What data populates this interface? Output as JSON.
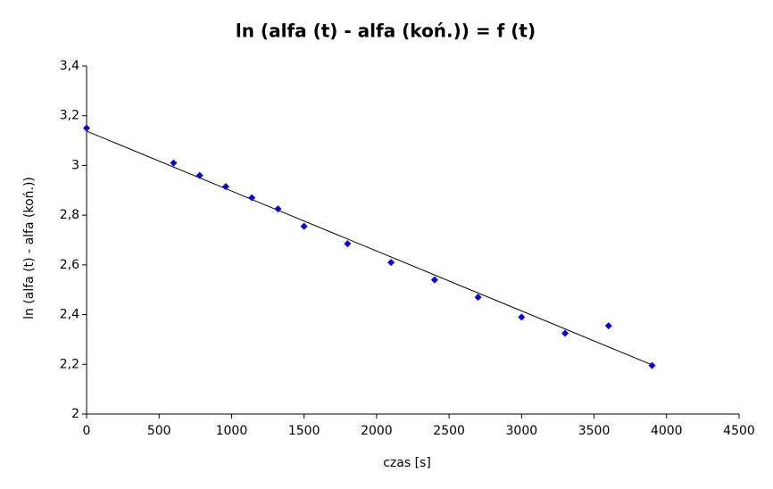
{
  "chart_data": {
    "type": "scatter",
    "title": "ln (alfa (t) - alfa (koń.)) = f (t)",
    "x_label": "czas [s]",
    "y_label": "ln (alfa (t) - alfa (koń.))",
    "series": [
      {
        "color": "#0000ff",
        "x": [
          0,
          600,
          780,
          960,
          1140,
          1320,
          1500,
          1800,
          2100,
          2400,
          2700,
          3000,
          3300,
          3600,
          3900
        ],
        "values": [
          3.15,
          3.01,
          2.96,
          2.915,
          2.87,
          2.825,
          2.755,
          2.685,
          2.61,
          2.54,
          2.47,
          2.39,
          2.325,
          2.355,
          2.195
        ]
      }
    ],
    "trendline": "linear",
    "xlim": [
      0,
      4500
    ],
    "xticks": [
      0,
      500,
      1000,
      1500,
      2000,
      2500,
      3000,
      3500,
      4000,
      4500
    ],
    "ylim": [
      2,
      3.4
    ],
    "yticks": [
      2,
      {
        "value": 2.2,
        "label": "2,2"
      },
      {
        "value": 2.4,
        "label": "2,4"
      },
      {
        "value": 2.6,
        "label": "2,6"
      },
      {
        "value": 2.8,
        "label": "2,8"
      },
      3,
      {
        "value": 3.2,
        "label": "3,2"
      },
      {
        "value": 3.4,
        "label": "3,4"
      }
    ],
    "grid": false
  }
}
